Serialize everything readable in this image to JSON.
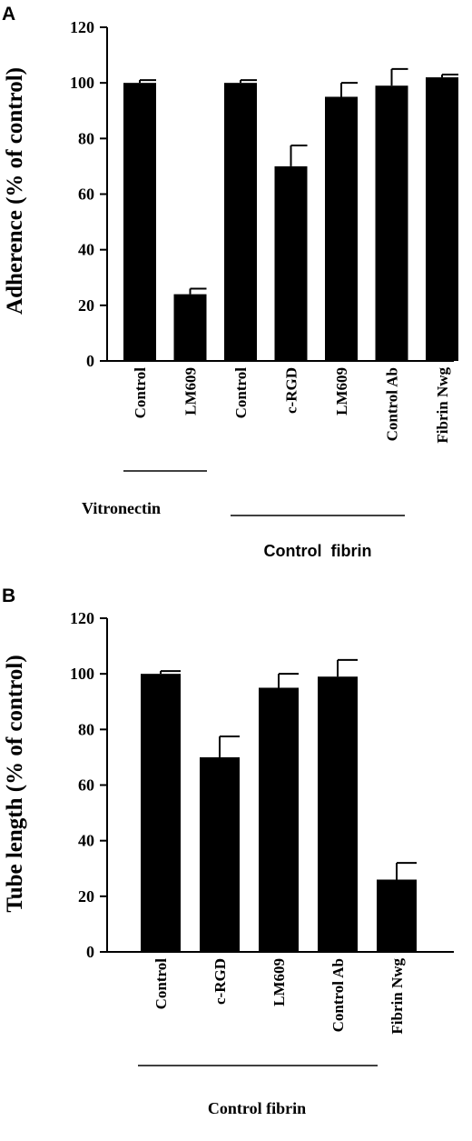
{
  "chart_data": [
    {
      "panel": "A",
      "type": "bar",
      "ylabel": "Adherence (% of control)",
      "ylim": [
        0,
        120
      ],
      "yticks": [
        0,
        20,
        40,
        60,
        80,
        100,
        120
      ],
      "categories": [
        "Control",
        "LM609",
        "Control",
        "c-RGD",
        "LM609",
        "Control Ab",
        "Fibrin Nwg"
      ],
      "values": [
        100,
        24,
        100,
        70,
        95,
        99,
        102
      ],
      "errors": [
        1,
        2,
        1,
        7.5,
        5,
        6,
        1
      ],
      "groups": [
        {
          "label": "Vitronectin",
          "from": 0,
          "to": 1
        },
        {
          "label": "Control  fibrin",
          "from": 2,
          "to": 5
        }
      ],
      "bar_color": "#000000"
    },
    {
      "panel": "B",
      "type": "bar",
      "ylabel": "Tube length (% of control)",
      "ylim": [
        0,
        120
      ],
      "yticks": [
        0,
        20,
        40,
        60,
        80,
        100,
        120
      ],
      "categories": [
        "Control",
        "c-RGD",
        "LM609",
        "Control Ab",
        "Fibrin Nwg"
      ],
      "values": [
        100,
        70,
        95,
        99,
        26
      ],
      "errors": [
        1,
        7.5,
        5,
        6,
        6
      ],
      "groups": [
        {
          "label": "Control fibrin",
          "from": 0,
          "to": 3
        }
      ],
      "bar_color": "#000000"
    }
  ]
}
